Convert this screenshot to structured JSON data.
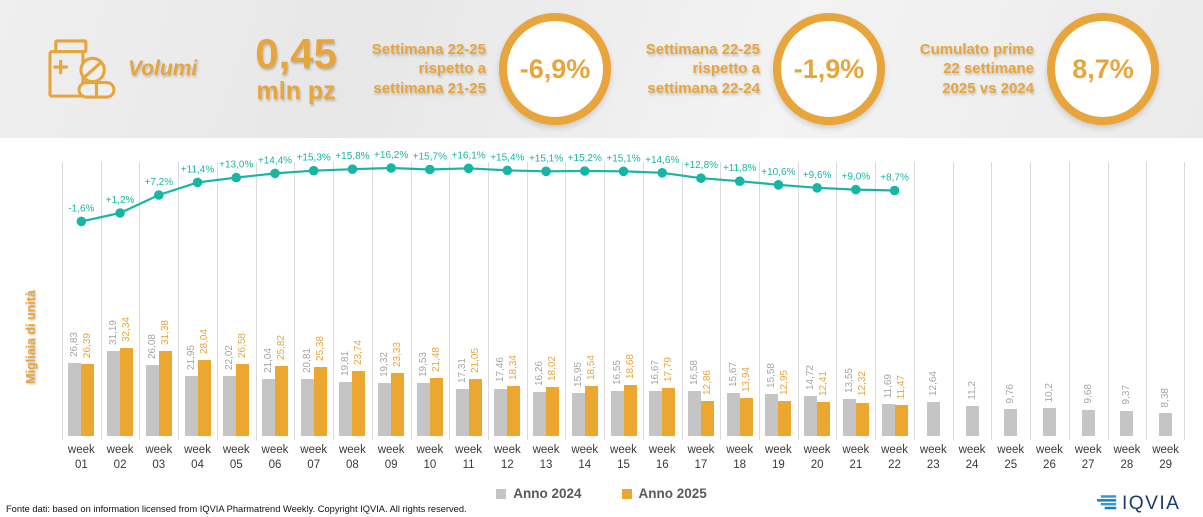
{
  "header": {
    "metric_label": "Volumi",
    "value": "0,45",
    "unit": "mln pz",
    "kpis": [
      {
        "label": "Settimana 22-25\nrispetto a\nsettimana 21-25",
        "value": "-6,9%"
      },
      {
        "label": "Settimana 22-25\nrispetto a\nsettimana 22-24",
        "value": "-1,9%"
      },
      {
        "label": "Cumulato prime\n22 settimane\n2025 vs 2024",
        "value": "8,7%"
      }
    ]
  },
  "chart_data": {
    "type": "bar+line",
    "ylabel": "Migliaia di unità",
    "grid": "vertical-only",
    "legend_position": "bottom",
    "categories": [
      "week 01",
      "week 02",
      "week 03",
      "week 04",
      "week 05",
      "week 06",
      "week 07",
      "week 08",
      "week 09",
      "week 10",
      "week 11",
      "week 12",
      "week 13",
      "week 14",
      "week 15",
      "week 16",
      "week 17",
      "week 18",
      "week 19",
      "week 20",
      "week 21",
      "week 22",
      "week 23",
      "week 24",
      "week 25",
      "week 26",
      "week 27",
      "week 28",
      "week 29"
    ],
    "series": [
      {
        "name": "Anno 2024",
        "type": "bar",
        "color": "#c5c5c5",
        "values": [
          26.83,
          31.19,
          26.08,
          21.95,
          22.02,
          21.04,
          20.81,
          19.81,
          19.32,
          19.53,
          17.31,
          17.46,
          16.26,
          15.95,
          16.55,
          16.67,
          16.58,
          15.67,
          15.58,
          14.72,
          13.55,
          11.69,
          12.64,
          11.2,
          9.76,
          10.2,
          9.68,
          9.37,
          8.38
        ],
        "labels": [
          "26,83",
          "31,19",
          "26,08",
          "21,95",
          "22,02",
          "21,04",
          "20,81",
          "19,81",
          "19,32",
          "19,53",
          "17,31",
          "17,46",
          "16,26",
          "15,95",
          "16,55",
          "16,67",
          "16,58",
          "15,67",
          "15,58",
          "14,72",
          "13,55",
          "11,69",
          "12,64",
          "11,2",
          "9,76",
          "10,2",
          "9,68",
          "9,37",
          "8,38"
        ]
      },
      {
        "name": "Anno 2025",
        "type": "bar",
        "color": "#eba72f",
        "values": [
          26.39,
          32.34,
          31.38,
          28.04,
          26.58,
          25.82,
          25.38,
          23.74,
          23.33,
          21.48,
          21.05,
          18.34,
          18.02,
          18.54,
          18.68,
          17.79,
          12.86,
          13.94,
          12.95,
          12.41,
          12.32,
          11.47
        ],
        "labels": [
          "26,39",
          "32,34",
          "31,38",
          "28,04",
          "26,58",
          "25,82",
          "25,38",
          "23,74",
          "23,33",
          "21,48",
          "21,05",
          "18,34",
          "18,02",
          "18,54",
          "18,68",
          "17,79",
          "12,86",
          "13,94",
          "12,95",
          "12,41",
          "12,32",
          "11,47"
        ]
      }
    ],
    "line_series": {
      "type": "line",
      "color": "#17b5a4",
      "values": [
        -1.6,
        1.2,
        7.2,
        11.4,
        13,
        14.4,
        15.3,
        15.8,
        16.2,
        15.7,
        16.1,
        15.4,
        15.1,
        15.2,
        15.1,
        14.6,
        12.8,
        11.8,
        10.6,
        9.6,
        9,
        8.7
      ],
      "labels": [
        "-1,6%",
        "+1,2%",
        "+7,2%",
        "+11,4%",
        "+13,0%",
        "+14,4%",
        "+15,3%",
        "+15,8%",
        "+16,2%",
        "+15,7%",
        "+16,1%",
        "+15,4%",
        "+15,1%",
        "+15,2%",
        "+15,1%",
        "+14,6%",
        "+12,8%",
        "+11,8%",
        "+10,6%",
        "+9,6%",
        "+9,0%",
        "+8,7%"
      ]
    }
  },
  "footer": {
    "source": "Fonte dati: based on information licensed from IQVIA Pharmatrend Weekly. Copyright IQVIA. All rights reserved.",
    "logo_text": "IQVIA"
  },
  "colors": {
    "orange": "#e8a53c",
    "teal": "#17b5a4",
    "gray_bar": "#c5c5c5",
    "gray_label": "#a5a5a5",
    "gridline": "#dbdbdb",
    "logo_navy": "#1c3a6d",
    "logo_blue": "#2f9cd8"
  }
}
